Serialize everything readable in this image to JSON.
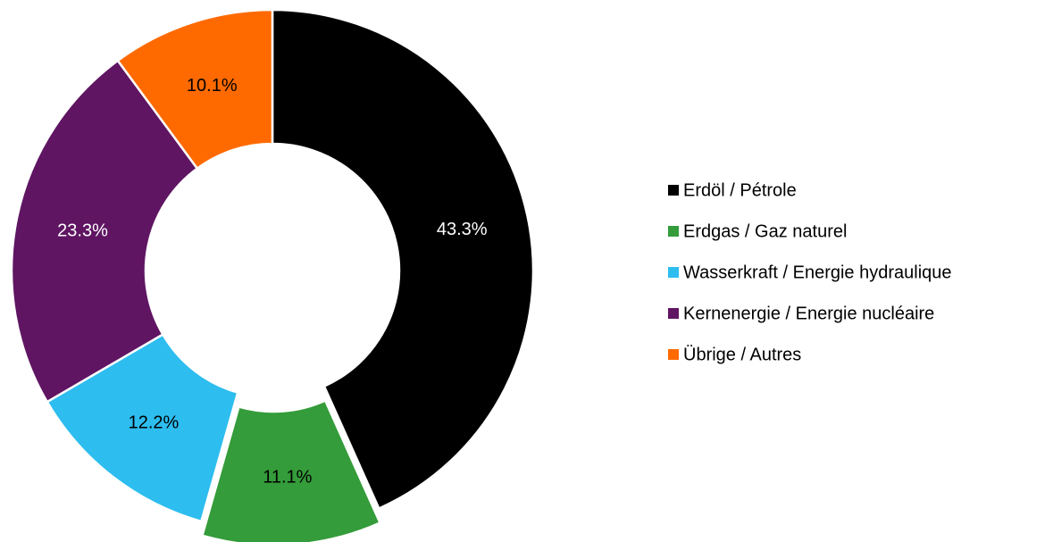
{
  "chart_data": {
    "type": "donut",
    "categories": [
      "Erdöl / Pétrole",
      "Erdgas / Gaz naturel",
      "Wasserkraft / Energie hydraulique",
      "Kernenergie / Energie nucléaire",
      "Übrige / Autres"
    ],
    "values": [
      43.3,
      11.1,
      12.2,
      23.3,
      10.1
    ],
    "value_labels": [
      "43.3%",
      "11.1%",
      "12.2%",
      "23.3%",
      "10.1%"
    ],
    "colors": [
      "#000000",
      "#349c3a",
      "#2dbdef",
      "#5f1562",
      "#ff6a00"
    ],
    "explode": [
      false,
      true,
      false,
      false,
      false
    ],
    "legend": "right"
  }
}
